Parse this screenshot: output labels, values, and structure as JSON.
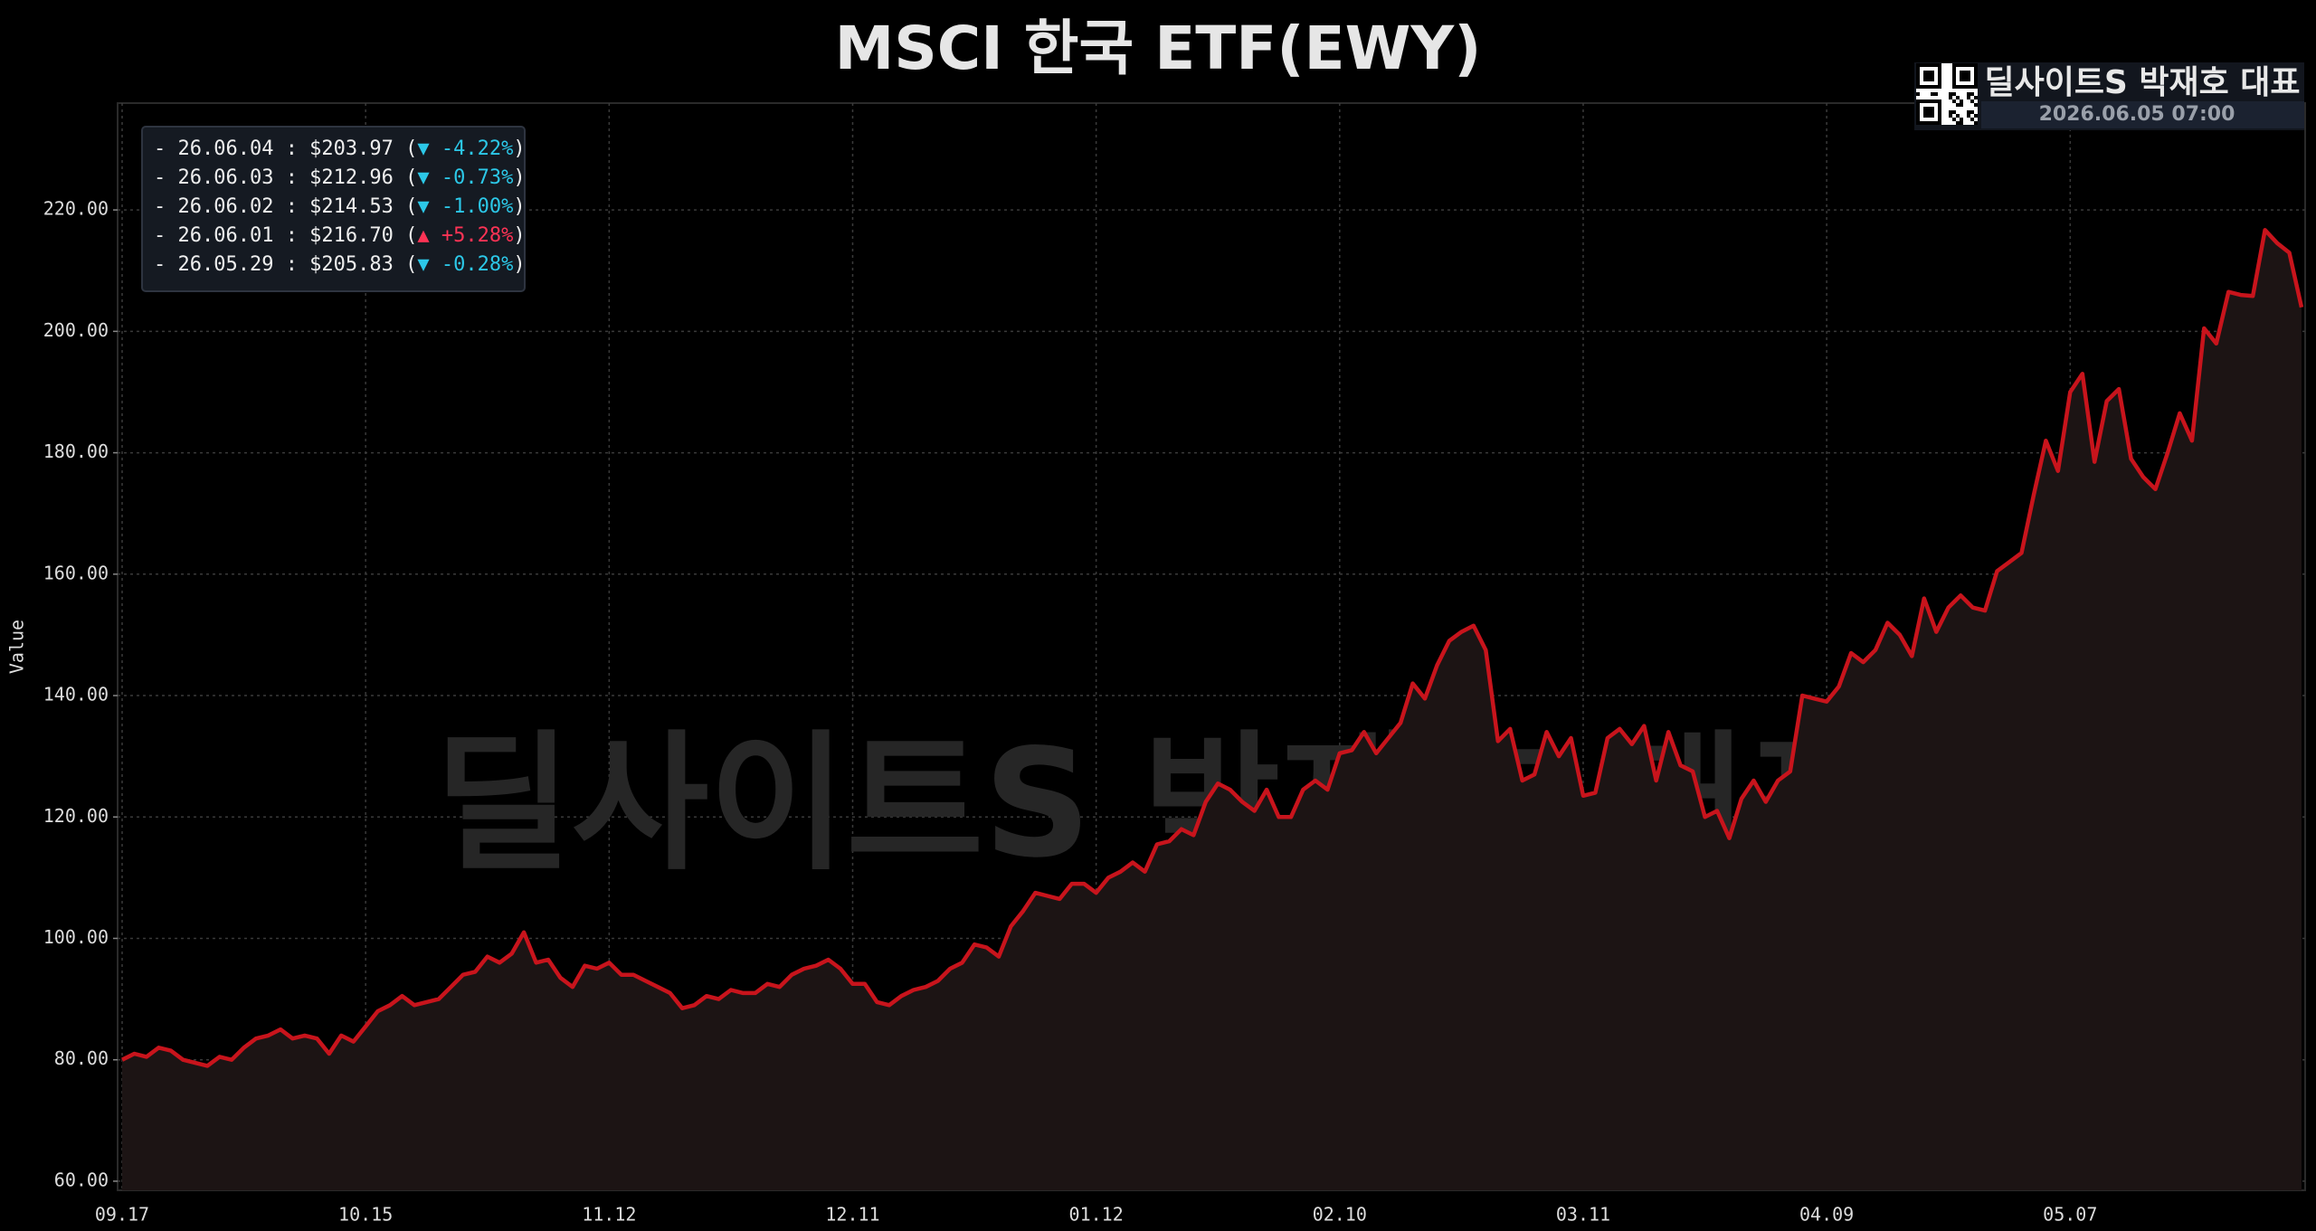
{
  "chart_data": {
    "type": "line",
    "title": "MSCI 한국 ETF(EWY)",
    "y_label": "Value",
    "watermark": "딜사이트S 박재호 대표",
    "badge": {
      "name": "딜사이트S 박재호 대표",
      "timestamp": "2026.06.05 07:00"
    },
    "info_lines": [
      {
        "prefix": "- 26.06.04 : $203.97 (",
        "change": "▼ -4.22%",
        "suffix": ")",
        "color": "#2cc8e8"
      },
      {
        "prefix": "- 26.06.03 : $212.96 (",
        "change": "▼ -0.73%",
        "suffix": ")",
        "color": "#2cc8e8"
      },
      {
        "prefix": "- 26.06.02 : $214.53 (",
        "change": "▼ -1.00%",
        "suffix": ")",
        "color": "#2cc8e8"
      },
      {
        "prefix": "- 26.06.01 : $216.70 (",
        "change": "▲ +5.28%",
        "suffix": ")",
        "color": "#ff3355"
      },
      {
        "prefix": "- 26.05.29 : $205.83 (",
        "change": "▼ -0.28%",
        "suffix": ")",
        "color": "#2cc8e8"
      }
    ],
    "categories": [
      "09.17",
      null,
      null,
      null,
      null,
      null,
      null,
      null,
      null,
      null,
      null,
      null,
      null,
      null,
      null,
      null,
      null,
      null,
      null,
      null,
      "10.15",
      null,
      null,
      null,
      null,
      null,
      null,
      null,
      null,
      null,
      null,
      null,
      null,
      null,
      null,
      null,
      null,
      null,
      null,
      null,
      "11.12",
      null,
      null,
      null,
      null,
      null,
      null,
      null,
      null,
      null,
      null,
      null,
      null,
      null,
      null,
      null,
      null,
      null,
      null,
      null,
      "12.11",
      null,
      null,
      null,
      null,
      null,
      null,
      null,
      null,
      null,
      null,
      null,
      null,
      null,
      null,
      null,
      null,
      null,
      null,
      null,
      "01.12",
      null,
      null,
      null,
      null,
      null,
      null,
      null,
      null,
      null,
      null,
      null,
      null,
      null,
      null,
      null,
      null,
      null,
      null,
      null,
      "02.10",
      null,
      null,
      null,
      null,
      null,
      null,
      null,
      null,
      null,
      null,
      null,
      null,
      null,
      null,
      null,
      null,
      null,
      null,
      null,
      "03.11",
      null,
      null,
      null,
      null,
      null,
      null,
      null,
      null,
      null,
      null,
      null,
      null,
      null,
      null,
      null,
      null,
      null,
      null,
      null,
      "04.09",
      null,
      null,
      null,
      null,
      null,
      null,
      null,
      null,
      null,
      null,
      null,
      null,
      null,
      null,
      null,
      null,
      null,
      null,
      null,
      "05.07",
      null,
      null,
      null,
      null,
      null,
      null,
      null,
      null,
      null,
      null,
      null,
      null,
      null,
      null,
      null,
      null,
      null,
      null,
      null
    ],
    "values": [
      80,
      81,
      80.5,
      82,
      81.5,
      80,
      79.5,
      79,
      80.5,
      80,
      82,
      83.5,
      84,
      85,
      83.5,
      84,
      83.5,
      81,
      84,
      83,
      85.5,
      88,
      89,
      90.5,
      89,
      89.5,
      90,
      92,
      94,
      94.5,
      97,
      96,
      97.5,
      101,
      96,
      96.5,
      93.5,
      92,
      95.5,
      95,
      96,
      94,
      94,
      93,
      92,
      91,
      88.5,
      89,
      90.5,
      90,
      91.5,
      91,
      91,
      92.5,
      92,
      94,
      95,
      95.5,
      96.5,
      95,
      92.5,
      92.5,
      89.5,
      89,
      90.5,
      91.5,
      92,
      93,
      95,
      96,
      99,
      98.5,
      97,
      102,
      104.5,
      107.5,
      107,
      106.5,
      109,
      109,
      107.5,
      110,
      111,
      112.5,
      111,
      115.5,
      116,
      118,
      117,
      122.5,
      125.5,
      124.5,
      122.5,
      121,
      124.5,
      120,
      120,
      124.5,
      126,
      124.5,
      130.5,
      131,
      134,
      130.5,
      133,
      135.5,
      142,
      139.5,
      145,
      149,
      150.5,
      151.5,
      147.5,
      132.5,
      134.5,
      126,
      127,
      134,
      130,
      133,
      123.5,
      124,
      133,
      134.5,
      132,
      135,
      126,
      134,
      128.5,
      127.5,
      120,
      121,
      116.5,
      123,
      126,
      122.5,
      126,
      127.5,
      140,
      139.5,
      139,
      141.5,
      147,
      145.5,
      147.5,
      152,
      150,
      146.5,
      156,
      150.5,
      154.5,
      156.5,
      154.5,
      154,
      160.5,
      162,
      163.5,
      173,
      182,
      177,
      190,
      193,
      178.5,
      188.5,
      190.5,
      179,
      176,
      174,
      180,
      186.5,
      182,
      200.5,
      198,
      206.5,
      206,
      205.83,
      216.7,
      214.53,
      212.96,
      203.97
    ],
    "color": "#c8141c",
    "fill_color": "#1c1414",
    "ylim": [
      58.5,
      237.6
    ],
    "yticks": [
      {
        "value": 60,
        "label": "60.00"
      },
      {
        "value": 80,
        "label": "80.00"
      },
      {
        "value": 100,
        "label": "100.00"
      },
      {
        "value": 120,
        "label": "120.00"
      },
      {
        "value": 140,
        "label": "140.00"
      },
      {
        "value": 160,
        "label": "160.00"
      },
      {
        "value": 180,
        "label": "180.00"
      },
      {
        "value": 200,
        "label": "200.00"
      },
      {
        "value": 220,
        "label": "220.00"
      }
    ],
    "grid": true
  }
}
